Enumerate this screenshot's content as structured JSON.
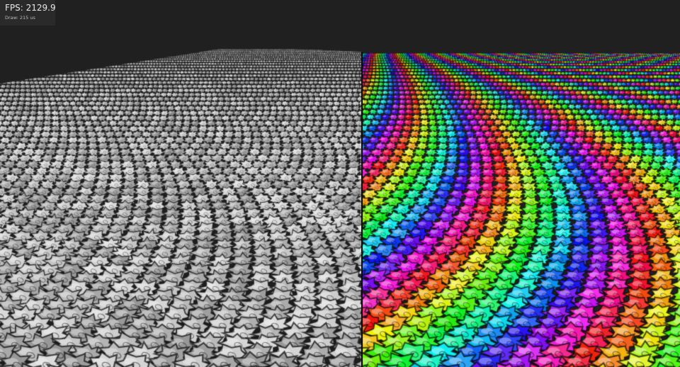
{
  "stats": {
    "fps_label": "FPS: 2129.9",
    "draw_label": "Draw: 215 us"
  },
  "viewport": {
    "left_pane": {
      "material": "silver",
      "color": "#bcbcbc"
    },
    "right_pane": {
      "material": "rainbow"
    },
    "background_color": "#202020"
  }
}
